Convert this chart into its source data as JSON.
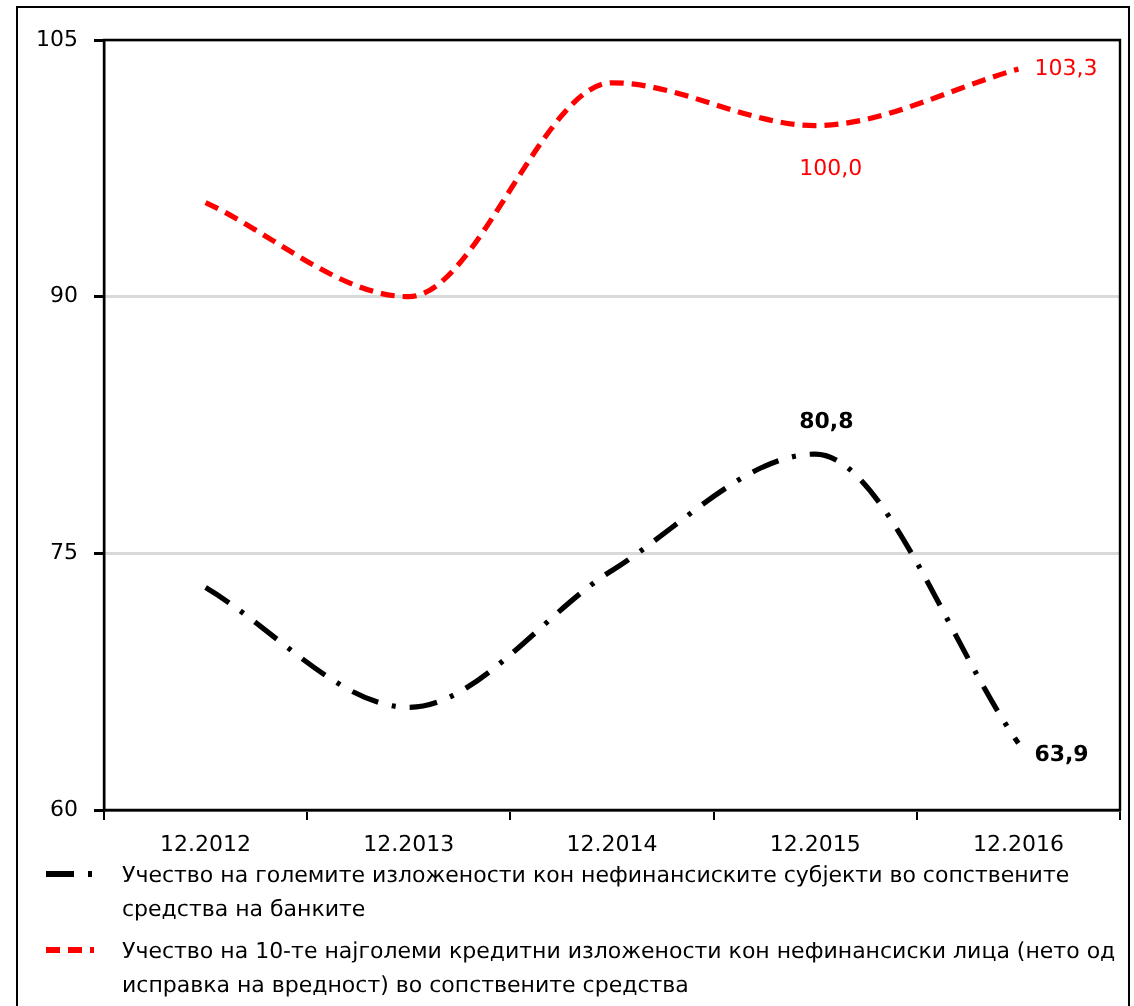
{
  "chart_data": {
    "type": "line",
    "categories": [
      "12.2012",
      "12.2013",
      "12.2014",
      "12.2015",
      "12.2016"
    ],
    "series": [
      {
        "name": "Учество на големите изложености кон нефинансиските субјекти во сопствените средства на банките",
        "color": "#000000",
        "line_style": "dashdot",
        "values": [
          73,
          66,
          74,
          80.8,
          63.9
        ],
        "value_labels": [
          null,
          null,
          null,
          "80,8",
          "63,9"
        ]
      },
      {
        "name": "Учество на 10-те најголеми кредитни изложености кон нефинансиски лица (нето од исправка на вредност) во сопствените средства",
        "color": "#ff0000",
        "line_style": "dashed",
        "values": [
          95.5,
          90,
          102.5,
          100.0,
          103.3
        ],
        "value_labels": [
          null,
          null,
          null,
          "100,0",
          "103,3"
        ]
      }
    ],
    "ylim": [
      60,
      105
    ],
    "yticks": [
      60,
      75,
      90,
      105
    ],
    "grid": "y",
    "legend": "bottom",
    "marker": "none"
  }
}
